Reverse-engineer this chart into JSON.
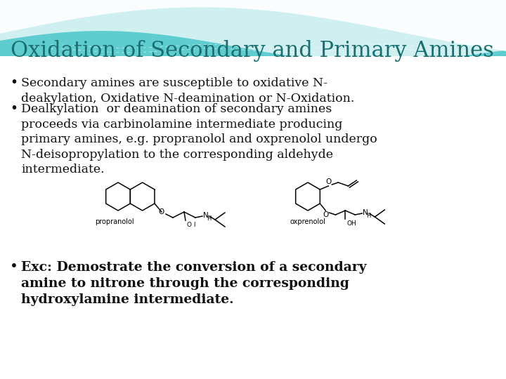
{
  "title": "Oxidation of Secondary and Primary Amines",
  "title_color": "#1a7070",
  "title_fontsize": 22,
  "background_color": "#ffffff",
  "teal_dark": "#40b8c0",
  "teal_light": "#7dd8dc",
  "teal_mid": "#5fccd0",
  "bullet_color": "#111111",
  "bullet_fontsize": 12.5,
  "bullet1_line1": "Secondary amines are susceptible to oxidative N-",
  "bullet1_line2": "deakylation, Oxidative N-deamination or N-Oxidation.",
  "bullet2_line1": "Dealkylation  or deamination of secondary amines",
  "bullet2_line2": "proceeds via carbinolamine intermediate producing",
  "bullet2_line3": "primary amines, e.g. propranolol and oxprenolol undergo",
  "bullet2_line4": "N-deisopropylation to the corresponding aldehyde",
  "bullet2_line5": "intermediate.",
  "bullet3_bold_line1": "Exc: Demostrate the conversion of a secondary",
  "bullet3_bold_line2": "amine to nitrone through the corresponding",
  "bullet3_bold_line3": "hydroxylamine intermediate.",
  "bullet3_fontsize": 13.5,
  "propranolol_label": "propranolol",
  "oxprenolol_label": "oxprenolol",
  "label_O_I": "O I",
  "label_OH": "OH"
}
